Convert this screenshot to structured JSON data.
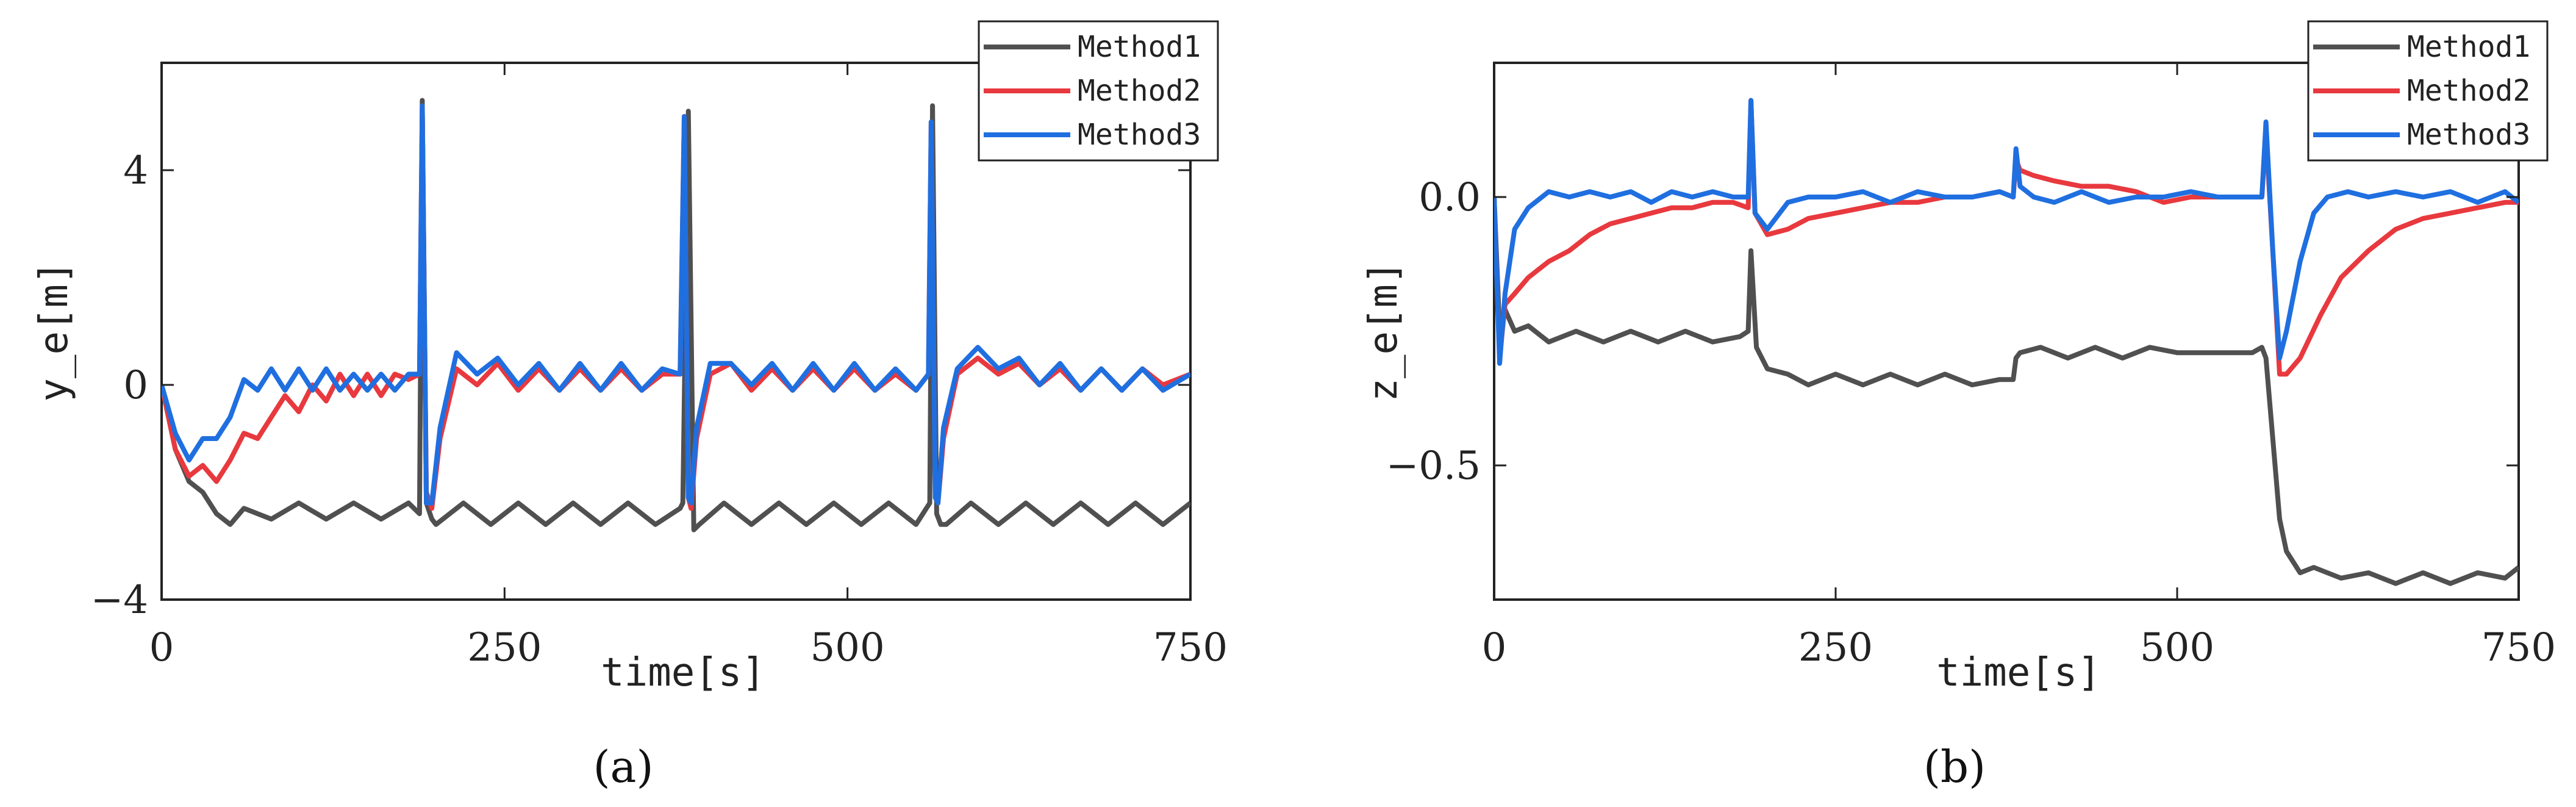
{
  "colors": {
    "method1": "#505050",
    "method2": "#e8393e",
    "method3": "#1f6fe0",
    "axis": "#222222"
  },
  "chart_data": [
    {
      "type": "line",
      "panel_label": "(a)",
      "xlabel": "time[s]",
      "ylabel": "y_e[m]",
      "xlim": [
        0,
        750
      ],
      "ylim": [
        -4,
        6
      ],
      "xticks": [
        0,
        250,
        500,
        750
      ],
      "xtick_labels": [
        "0",
        "250",
        "500",
        "750"
      ],
      "yticks": [
        -4,
        0,
        4
      ],
      "ytick_labels": [
        "−4",
        "0",
        "4"
      ],
      "legend_position": "top-right",
      "series": [
        {
          "name": "Method1",
          "color": "#505050",
          "x": [
            0,
            10,
            20,
            30,
            40,
            50,
            60,
            80,
            100,
            120,
            140,
            160,
            180,
            188,
            190,
            193,
            197,
            200,
            220,
            240,
            260,
            280,
            300,
            320,
            340,
            360,
            378,
            380,
            384,
            388,
            392,
            410,
            430,
            450,
            470,
            490,
            510,
            530,
            550,
            560,
            562,
            565,
            568,
            572,
            590,
            610,
            630,
            650,
            670,
            690,
            710,
            730,
            750
          ],
          "y": [
            0,
            -1.2,
            -1.8,
            -2.0,
            -2.4,
            -2.6,
            -2.3,
            -2.5,
            -2.2,
            -2.5,
            -2.2,
            -2.5,
            -2.2,
            -2.4,
            5.3,
            -2.2,
            -2.5,
            -2.6,
            -2.2,
            -2.6,
            -2.2,
            -2.6,
            -2.2,
            -2.6,
            -2.2,
            -2.6,
            -2.3,
            -2.2,
            5.1,
            -2.7,
            -2.6,
            -2.2,
            -2.6,
            -2.2,
            -2.6,
            -2.2,
            -2.6,
            -2.2,
            -2.6,
            -2.2,
            5.2,
            -2.4,
            -2.6,
            -2.6,
            -2.2,
            -2.6,
            -2.2,
            -2.6,
            -2.2,
            -2.6,
            -2.2,
            -2.6,
            -2.2
          ]
        },
        {
          "name": "Method2",
          "color": "#e8393e",
          "x": [
            0,
            10,
            20,
            30,
            40,
            50,
            60,
            70,
            80,
            90,
            100,
            110,
            120,
            130,
            140,
            150,
            160,
            170,
            180,
            188,
            190,
            193,
            197,
            203,
            215,
            230,
            245,
            260,
            275,
            290,
            305,
            320,
            335,
            350,
            365,
            378,
            381,
            384,
            386,
            390,
            400,
            415,
            430,
            445,
            460,
            475,
            490,
            505,
            520,
            535,
            550,
            559,
            561,
            564,
            566,
            570,
            580,
            595,
            610,
            625,
            640,
            655,
            670,
            685,
            700,
            715,
            730,
            750
          ],
          "y": [
            0,
            -1.2,
            -1.7,
            -1.5,
            -1.8,
            -1.4,
            -0.9,
            -1.0,
            -0.6,
            -0.2,
            -0.5,
            0.0,
            -0.3,
            0.2,
            -0.2,
            0.2,
            -0.2,
            0.2,
            0.1,
            0.2,
            5.2,
            -2.0,
            -2.3,
            -1.0,
            0.3,
            0.0,
            0.4,
            -0.1,
            0.3,
            -0.1,
            0.3,
            -0.1,
            0.3,
            -0.1,
            0.2,
            0.2,
            5.0,
            -2.1,
            -2.3,
            -1.0,
            0.2,
            0.4,
            -0.1,
            0.3,
            -0.1,
            0.3,
            -0.1,
            0.3,
            -0.1,
            0.2,
            -0.1,
            0.2,
            4.9,
            -2.0,
            -2.2,
            -1.0,
            0.2,
            0.5,
            0.2,
            0.4,
            0.0,
            0.3,
            -0.1,
            0.3,
            -0.1,
            0.3,
            0.0,
            0.2
          ]
        },
        {
          "name": "Method3",
          "color": "#1f6fe0",
          "x": [
            0,
            10,
            20,
            30,
            40,
            50,
            60,
            70,
            80,
            90,
            100,
            110,
            120,
            130,
            140,
            150,
            160,
            170,
            180,
            188,
            190,
            193,
            197,
            203,
            215,
            230,
            245,
            260,
            275,
            290,
            305,
            320,
            335,
            350,
            365,
            378,
            381,
            384,
            386,
            390,
            400,
            415,
            430,
            445,
            460,
            475,
            490,
            505,
            520,
            535,
            550,
            559,
            561,
            564,
            566,
            570,
            580,
            595,
            610,
            625,
            640,
            655,
            670,
            685,
            700,
            715,
            730,
            750
          ],
          "y": [
            0,
            -0.9,
            -1.4,
            -1.0,
            -1.0,
            -0.6,
            0.1,
            -0.1,
            0.3,
            -0.1,
            0.3,
            -0.1,
            0.3,
            -0.1,
            0.2,
            -0.1,
            0.2,
            -0.1,
            0.2,
            0.2,
            5.2,
            -2.2,
            -2.2,
            -0.8,
            0.6,
            0.2,
            0.5,
            0.0,
            0.4,
            -0.1,
            0.4,
            -0.1,
            0.4,
            -0.1,
            0.3,
            0.2,
            5.0,
            -2.1,
            -2.2,
            -0.8,
            0.4,
            0.4,
            0.0,
            0.4,
            -0.1,
            0.4,
            -0.1,
            0.4,
            -0.1,
            0.3,
            -0.1,
            0.2,
            4.9,
            -2.1,
            -2.2,
            -0.8,
            0.3,
            0.7,
            0.3,
            0.5,
            0.0,
            0.4,
            -0.1,
            0.3,
            -0.1,
            0.3,
            -0.1,
            0.2
          ]
        }
      ]
    },
    {
      "type": "line",
      "panel_label": "(b)",
      "xlabel": "time[s]",
      "ylabel": "z_e[m]",
      "xlim": [
        0,
        750
      ],
      "ylim": [
        -0.75,
        0.25
      ],
      "xticks": [
        0,
        250,
        500,
        750
      ],
      "xtick_labels": [
        "0",
        "250",
        "500",
        "750"
      ],
      "yticks": [
        -0.5,
        0.0
      ],
      "ytick_labels": [
        "−0.5",
        "0.0"
      ],
      "legend_position": "top-right",
      "series": [
        {
          "name": "Method1",
          "color": "#505050",
          "x": [
            0,
            4,
            8,
            15,
            25,
            40,
            60,
            80,
            100,
            120,
            140,
            160,
            180,
            186,
            188,
            192,
            200,
            215,
            230,
            250,
            270,
            290,
            310,
            330,
            350,
            370,
            380,
            382,
            385,
            400,
            420,
            440,
            460,
            480,
            500,
            520,
            540,
            555,
            562,
            565,
            570,
            575,
            580,
            590,
            600,
            620,
            640,
            660,
            680,
            700,
            720,
            740,
            750
          ],
          "y": [
            0,
            -0.25,
            -0.21,
            -0.25,
            -0.24,
            -0.27,
            -0.25,
            -0.27,
            -0.25,
            -0.27,
            -0.25,
            -0.27,
            -0.26,
            -0.25,
            -0.1,
            -0.28,
            -0.32,
            -0.33,
            -0.35,
            -0.33,
            -0.35,
            -0.33,
            -0.35,
            -0.33,
            -0.35,
            -0.34,
            -0.34,
            -0.3,
            -0.29,
            -0.28,
            -0.3,
            -0.28,
            -0.3,
            -0.28,
            -0.29,
            -0.29,
            -0.29,
            -0.29,
            -0.28,
            -0.3,
            -0.45,
            -0.6,
            -0.66,
            -0.7,
            -0.69,
            -0.71,
            -0.7,
            -0.72,
            -0.7,
            -0.72,
            -0.7,
            -0.71,
            -0.69
          ]
        },
        {
          "name": "Method2",
          "color": "#e8393e",
          "x": [
            0,
            4,
            8,
            15,
            25,
            40,
            55,
            70,
            85,
            100,
            115,
            130,
            145,
            160,
            175,
            186,
            188,
            191,
            200,
            215,
            230,
            250,
            270,
            290,
            310,
            330,
            350,
            370,
            380,
            382,
            385,
            395,
            410,
            430,
            450,
            470,
            490,
            510,
            530,
            550,
            562,
            565,
            570,
            575,
            580,
            590,
            605,
            620,
            640,
            660,
            680,
            700,
            720,
            740,
            750
          ],
          "y": [
            0,
            -0.3,
            -0.2,
            -0.18,
            -0.15,
            -0.12,
            -0.1,
            -0.07,
            -0.05,
            -0.04,
            -0.03,
            -0.02,
            -0.02,
            -0.01,
            -0.01,
            -0.02,
            0.18,
            -0.03,
            -0.07,
            -0.06,
            -0.04,
            -0.03,
            -0.02,
            -0.01,
            -0.01,
            0.0,
            0.0,
            0.01,
            0.0,
            0.07,
            0.05,
            0.04,
            0.03,
            0.02,
            0.02,
            0.01,
            -0.01,
            0.0,
            0.0,
            0.0,
            0.0,
            0.12,
            -0.1,
            -0.33,
            -0.33,
            -0.3,
            -0.22,
            -0.15,
            -0.1,
            -0.06,
            -0.04,
            -0.03,
            -0.02,
            -0.01,
            -0.01
          ]
        },
        {
          "name": "Method3",
          "color": "#1f6fe0",
          "x": [
            0,
            4,
            8,
            15,
            25,
            40,
            55,
            70,
            85,
            100,
            115,
            130,
            145,
            160,
            175,
            186,
            188,
            191,
            200,
            215,
            230,
            250,
            270,
            290,
            310,
            330,
            350,
            370,
            380,
            382,
            385,
            395,
            410,
            430,
            450,
            470,
            490,
            510,
            530,
            550,
            562,
            565,
            570,
            575,
            580,
            590,
            600,
            610,
            625,
            640,
            660,
            680,
            700,
            720,
            740,
            750
          ],
          "y": [
            0,
            -0.31,
            -0.18,
            -0.06,
            -0.02,
            0.01,
            0.0,
            0.01,
            0.0,
            0.01,
            -0.01,
            0.01,
            0.0,
            0.01,
            0.0,
            0.0,
            0.18,
            -0.03,
            -0.06,
            -0.01,
            0.0,
            0.0,
            0.01,
            -0.01,
            0.01,
            0.0,
            0.0,
            0.01,
            0.0,
            0.09,
            0.02,
            0.0,
            -0.01,
            0.01,
            -0.01,
            0.0,
            0.0,
            0.01,
            0.0,
            0.0,
            0.0,
            0.14,
            -0.1,
            -0.3,
            -0.25,
            -0.12,
            -0.03,
            0.0,
            0.01,
            0.0,
            0.01,
            0.0,
            0.01,
            -0.01,
            0.01,
            -0.01
          ]
        }
      ]
    }
  ]
}
